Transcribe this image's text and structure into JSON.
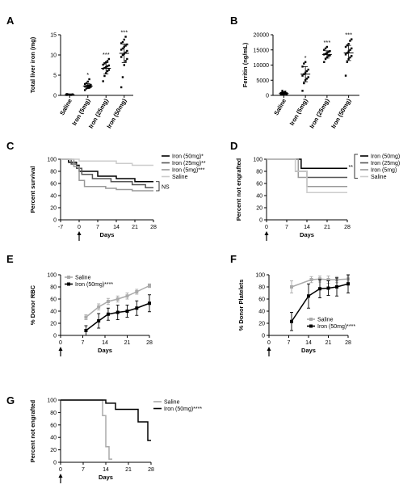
{
  "chart_data": [
    {
      "panel": "A",
      "type": "scatter",
      "ylabel": "Total liver iron (mg)",
      "ylim": [
        0,
        15
      ],
      "yticks": [
        "0",
        "5",
        "10",
        "15"
      ],
      "categories": [
        "Saline",
        "Iron (5mg)",
        "Iron (25mg)",
        "Iron (50mg)"
      ],
      "significance": [
        "",
        "*",
        "***",
        "***"
      ],
      "means": [
        0.2,
        2.3,
        6.7,
        10.4
      ],
      "sd": [
        0.1,
        0.6,
        1.4,
        2.3
      ],
      "points": [
        [
          0.1,
          0.15,
          0.2,
          0.2,
          0.25,
          0.3,
          0.2,
          0.15,
          0.1,
          0.2,
          0.3,
          0.25
        ],
        [
          1.3,
          1.7,
          1.9,
          2.0,
          2.1,
          2.2,
          2.3,
          2.4,
          2.5,
          2.6,
          2.8,
          3.0,
          3.4,
          4.0
        ],
        [
          3.5,
          4.8,
          5.5,
          6.0,
          6.3,
          6.6,
          6.8,
          7.0,
          7.2,
          7.4,
          7.6,
          7.9,
          8.2,
          8.5,
          9.0
        ],
        [
          2.0,
          4.5,
          7.5,
          8.5,
          9.0,
          9.5,
          10.0,
          10.3,
          10.6,
          11.0,
          11.3,
          11.6,
          12.0,
          12.3,
          12.6,
          12.9,
          13.2,
          13.8,
          14.5
        ]
      ]
    },
    {
      "panel": "B",
      "type": "scatter",
      "ylabel": "Ferritin (ng/mL)",
      "ylim": [
        0,
        20000
      ],
      "yticks": [
        "0",
        "5000",
        "10000",
        "15000",
        "20000"
      ],
      "categories": [
        "Saline",
        "Iron (5mg)",
        "Iron (25mg)",
        "Iron (50mg)"
      ],
      "significance": [
        "",
        "*",
        "***",
        "***"
      ],
      "means": [
        600,
        7000,
        13500,
        14000
      ],
      "sd": [
        300,
        2500,
        1200,
        2500
      ],
      "points": [
        [
          200,
          400,
          500,
          600,
          700,
          800,
          900,
          1000,
          1200,
          300,
          600,
          1500
        ],
        [
          1500,
          4000,
          5000,
          5500,
          6000,
          6500,
          7000,
          7500,
          8000,
          8500,
          9500,
          10500,
          11000
        ],
        [
          11000,
          12000,
          12500,
          13000,
          13200,
          13500,
          13700,
          14000,
          14300,
          14600,
          15000,
          15500,
          16000
        ],
        [
          6500,
          11000,
          12000,
          12500,
          13000,
          13500,
          14000,
          14500,
          15000,
          15500,
          16000,
          16500,
          17000,
          18000,
          18500
        ]
      ]
    },
    {
      "panel": "C",
      "type": "line",
      "ylabel": "Percent survival",
      "xlabel": "Days",
      "xlim": [
        -7,
        28
      ],
      "ylim": [
        0,
        100
      ],
      "xticks": [
        "-7",
        "0",
        "7",
        "14",
        "21",
        "28"
      ],
      "yticks": [
        "0",
        "20",
        "40",
        "60",
        "80",
        "100"
      ],
      "series": [
        {
          "name": "Iron (50mg)*",
          "color": "#000000",
          "x": [
            -7,
            -4,
            -4,
            -1,
            -1,
            0,
            0,
            7,
            7,
            14,
            14,
            21,
            21,
            28
          ],
          "y": [
            100,
            100,
            95,
            95,
            90,
            90,
            80,
            80,
            72,
            72,
            68,
            68,
            63,
            63
          ]
        },
        {
          "name": "Iron (25mg)**",
          "color": "#555555",
          "x": [
            -7,
            -3,
            -3,
            -1,
            -1,
            1,
            1,
            5,
            5,
            12,
            12,
            20,
            20,
            25,
            25,
            28
          ],
          "y": [
            100,
            100,
            92,
            92,
            85,
            85,
            75,
            75,
            68,
            68,
            63,
            63,
            58,
            58,
            53,
            53
          ]
        },
        {
          "name": "Iron (5mg)***",
          "color": "#999999",
          "x": [
            -7,
            -2,
            -2,
            0,
            0,
            2,
            2,
            10,
            10,
            14,
            14,
            20,
            20,
            28
          ],
          "y": [
            100,
            100,
            88,
            88,
            65,
            65,
            55,
            55,
            52,
            52,
            50,
            50,
            48,
            48
          ]
        },
        {
          "name": "Saline",
          "color": "#cccccc",
          "x": [
            -7,
            0,
            0,
            14,
            14,
            20,
            20,
            28
          ],
          "y": [
            100,
            100,
            97,
            97,
            93,
            93,
            90,
            90
          ]
        }
      ],
      "annotation": "NS",
      "arrow_at": 0
    },
    {
      "panel": "D",
      "type": "line",
      "ylabel": "Percent not engrafted",
      "xlabel": "Days",
      "xlim": [
        0,
        28
      ],
      "ylim": [
        0,
        100
      ],
      "xticks": [
        "0",
        "7",
        "14",
        "21",
        "28"
      ],
      "yticks": [
        "0",
        "20",
        "40",
        "60",
        "80",
        "100"
      ],
      "series": [
        {
          "name": "Iron (50mg)",
          "color": "#000000",
          "x": [
            0,
            12,
            12,
            28
          ],
          "y": [
            100,
            100,
            85,
            85
          ]
        },
        {
          "name": "Iron (25mg)",
          "color": "#555555",
          "x": [
            0,
            10,
            10,
            14,
            14,
            28
          ],
          "y": [
            100,
            100,
            80,
            80,
            70,
            70
          ]
        },
        {
          "name": "Iron (5mg)",
          "color": "#999999",
          "x": [
            0,
            11,
            11,
            14,
            14,
            28
          ],
          "y": [
            100,
            100,
            70,
            70,
            55,
            55
          ]
        },
        {
          "name": "Saline",
          "color": "#cccccc",
          "x": [
            0,
            10,
            10,
            14,
            14,
            28
          ],
          "y": [
            100,
            100,
            80,
            80,
            45,
            45
          ]
        }
      ],
      "annotation": "**",
      "arrow_at": 0
    },
    {
      "panel": "E",
      "type": "line",
      "ylabel": "% Donor RBC",
      "xlabel": "Days",
      "xlim": [
        0,
        28
      ],
      "ylim": [
        0,
        100
      ],
      "xticks": [
        "0",
        "7",
        "14",
        "21",
        "28"
      ],
      "yticks": [
        "0",
        "20",
        "40",
        "60",
        "80",
        "100"
      ],
      "series": [
        {
          "name": "Saline",
          "color": "#aaaaaa",
          "x": [
            8,
            12,
            15,
            18,
            21,
            24,
            28
          ],
          "y": [
            30,
            47,
            56,
            60,
            65,
            72,
            82
          ],
          "err": [
            4,
            5,
            5,
            5,
            5,
            4,
            3
          ]
        },
        {
          "name": "Iron (50mg)****",
          "color": "#000000",
          "x": [
            8,
            12,
            15,
            18,
            21,
            24,
            28
          ],
          "y": [
            8,
            24,
            35,
            38,
            40,
            45,
            53
          ],
          "err": [
            8,
            12,
            10,
            12,
            10,
            12,
            14
          ]
        }
      ],
      "arrow_at": 0
    },
    {
      "panel": "F",
      "type": "line",
      "ylabel": "% Donor Platelets",
      "xlabel": "Days",
      "xlim": [
        0,
        28
      ],
      "ylim": [
        0,
        100
      ],
      "xticks": [
        "0",
        "7",
        "14",
        "21",
        "28"
      ],
      "yticks": [
        "0",
        "20",
        "40",
        "60",
        "80",
        "100"
      ],
      "series": [
        {
          "name": "Saline",
          "color": "#aaaaaa",
          "x": [
            8,
            15,
            18,
            21,
            24,
            28
          ],
          "y": [
            80,
            92,
            93,
            92,
            92,
            93
          ],
          "err": [
            10,
            5,
            5,
            6,
            5,
            5
          ]
        },
        {
          "name": "Iron (50mg)****",
          "color": "#000000",
          "x": [
            8,
            14,
            18,
            21,
            24,
            28
          ],
          "y": [
            23,
            65,
            77,
            78,
            80,
            85
          ],
          "err": [
            15,
            20,
            15,
            12,
            15,
            15
          ]
        }
      ],
      "arrow_at": 0
    },
    {
      "panel": "G",
      "type": "line",
      "ylabel": "Percent not engrafted",
      "xlabel": "Days",
      "xlim": [
        0,
        28
      ],
      "ylim": [
        0,
        100
      ],
      "xticks": [
        "0",
        "7",
        "14",
        "21",
        "28"
      ],
      "yticks": [
        "0",
        "20",
        "40",
        "60",
        "80",
        "100"
      ],
      "series": [
        {
          "name": "Saline",
          "color": "#aaaaaa",
          "x": [
            0,
            13,
            13,
            14,
            14,
            15,
            15,
            16
          ],
          "y": [
            100,
            100,
            75,
            75,
            25,
            25,
            5,
            5
          ]
        },
        {
          "name": "Iron (50mg)****",
          "color": "#000000",
          "x": [
            0,
            14,
            14,
            17,
            17,
            24,
            24,
            27,
            27,
            28
          ],
          "y": [
            100,
            100,
            95,
            95,
            85,
            85,
            65,
            65,
            35,
            35
          ]
        }
      ],
      "arrow_at": 0
    }
  ]
}
